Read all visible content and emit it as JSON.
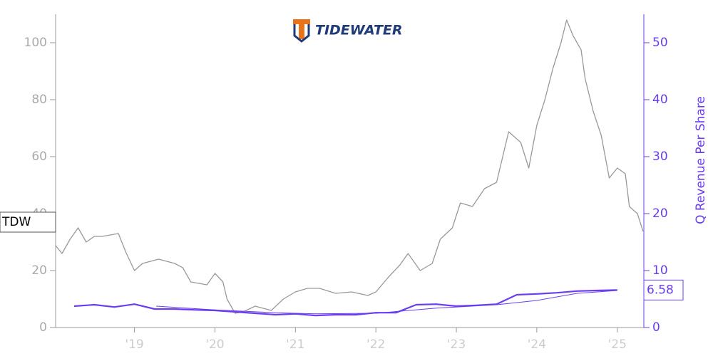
{
  "chart_data": {
    "type": "line",
    "logo_text": "TIDEWATER",
    "ticker": "TDW",
    "y2label": "Q Revenue Per Share",
    "xlim": [
      2018.02,
      2025.33
    ],
    "xticks": [
      {
        "value": 2019,
        "label": "'19"
      },
      {
        "value": 2020,
        "label": "'20"
      },
      {
        "value": 2021,
        "label": "'21"
      },
      {
        "value": 2022,
        "label": "'22"
      },
      {
        "value": 2023,
        "label": "'23"
      },
      {
        "value": 2024,
        "label": "'24"
      },
      {
        "value": 2025,
        "label": "'25"
      }
    ],
    "ylim": [
      0,
      110
    ],
    "yticks": [
      0,
      20,
      40,
      60,
      80,
      100
    ],
    "y2lim": [
      0,
      55
    ],
    "y2ticks": [
      0,
      10,
      20,
      30,
      40,
      50
    ],
    "series": [
      {
        "color": "#999999",
        "line_width": 1.3,
        "x": [
          2018.02,
          2018.1,
          2018.2,
          2018.3,
          2018.4,
          2018.5,
          2018.6,
          2018.8,
          2018.9,
          2019.0,
          2019.1,
          2019.3,
          2019.5,
          2019.6,
          2019.7,
          2019.9,
          2020.0,
          2020.1,
          2020.15,
          2020.25,
          2020.35,
          2020.5,
          2020.7,
          2020.85,
          2021.0,
          2021.15,
          2021.3,
          2021.5,
          2021.7,
          2021.9,
          2022.0,
          2022.15,
          2022.3,
          2022.4,
          2022.55,
          2022.7,
          2022.8,
          2022.95,
          2023.05,
          2023.2,
          2023.35,
          2023.5,
          2023.65,
          2023.8,
          2023.9,
          2024.0,
          2024.1,
          2024.2,
          2024.3,
          2024.37,
          2024.45,
          2024.55,
          2024.6,
          2024.7,
          2024.8,
          2024.9,
          2025.0,
          2025.1,
          2025.15,
          2025.25,
          2025.32
        ],
        "values": [
          28.75,
          26,
          31,
          35,
          30,
          32,
          32,
          33,
          26,
          20,
          22.5,
          24,
          22.5,
          21,
          16,
          15,
          19,
          16,
          10,
          5,
          5.5,
          7.5,
          6,
          10,
          12.5,
          13.75,
          13.75,
          12,
          12.5,
          11.25,
          12.5,
          17.5,
          22,
          26,
          20,
          22.5,
          31,
          35,
          43.75,
          42.5,
          48.75,
          51,
          68.75,
          65,
          56,
          71,
          80,
          91,
          100,
          108,
          102.5,
          97.5,
          87.5,
          76,
          67.5,
          52.5,
          56,
          54,
          42.5,
          40,
          33.75
        ]
      },
      {
        "color": "#6a3df0",
        "line_width": 2.2,
        "axis": "y2",
        "x": [
          2018.25,
          2018.5,
          2018.75,
          2019.0,
          2019.25,
          2019.5,
          2019.75,
          2020.0,
          2020.25,
          2020.5,
          2020.75,
          2021.0,
          2021.25,
          2021.5,
          2021.75,
          2022.0,
          2022.25,
          2022.5,
          2022.75,
          2023.0,
          2023.25,
          2023.5,
          2023.75,
          2024.0,
          2024.25,
          2024.5,
          2024.75,
          2025.0
        ],
        "values": [
          3.75,
          4,
          3.6,
          4.1,
          3.25,
          3.25,
          3.1,
          3,
          2.75,
          2.5,
          2.25,
          2.4,
          2.1,
          2.25,
          2.25,
          2.6,
          2.6,
          4,
          4.1,
          3.75,
          3.9,
          4.1,
          5.75,
          5.9,
          6.1,
          6.4,
          6.5,
          6.58
        ]
      },
      {
        "color": "#6a3df0",
        "line_width": 1,
        "axis": "y2",
        "x": [
          2019.27,
          2020.0,
          2020.75,
          2021.25,
          2022.0,
          2022.75,
          2023.5,
          2024.0,
          2024.5,
          2025.0
        ],
        "values": [
          3.75,
          3.1,
          2.6,
          2.4,
          2.5,
          3.4,
          4,
          4.75,
          6,
          6.5
        ]
      }
    ]
  }
}
